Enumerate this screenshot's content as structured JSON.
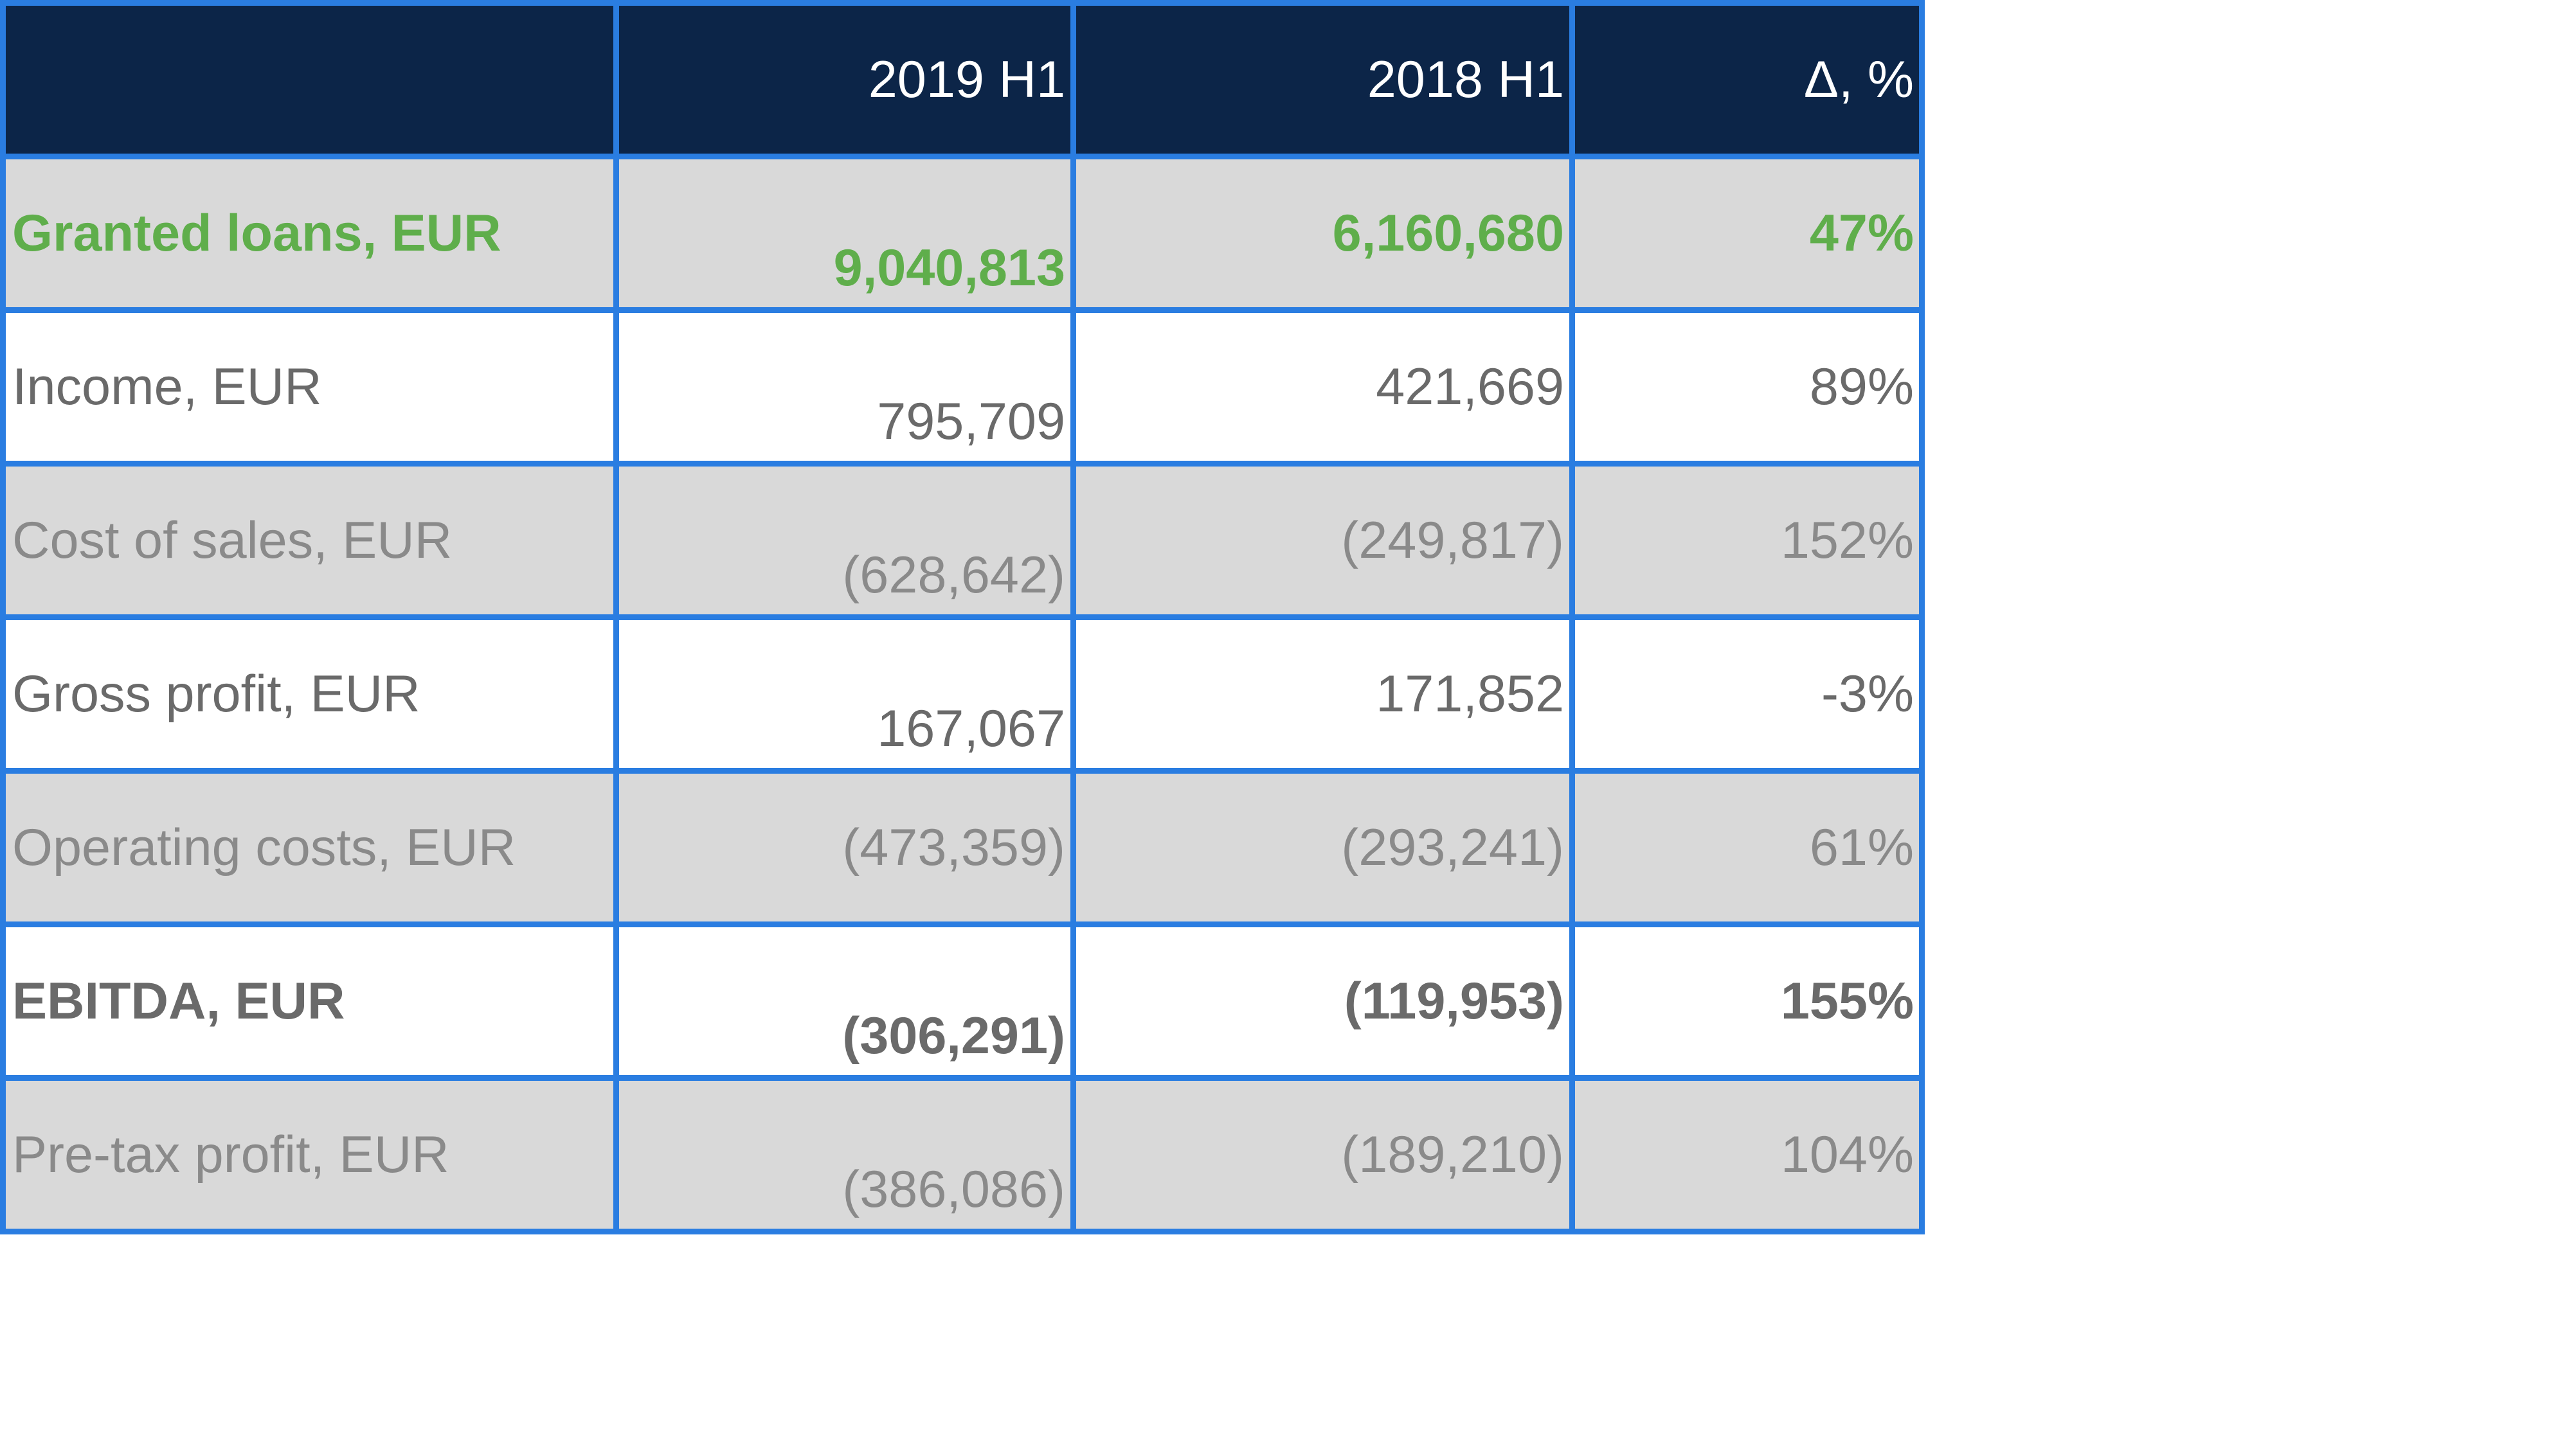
{
  "table": {
    "headers": [
      "",
      "2019 H1",
      "2018 H1",
      "Δ, %"
    ],
    "rows": [
      {
        "label": "Granted loans, EUR",
        "h1_2019": "9,040,813",
        "h1_2018": "6,160,680",
        "delta": "47%"
      },
      {
        "label": "Income, EUR",
        "h1_2019": "795,709",
        "h1_2018": "421,669",
        "delta": "89%"
      },
      {
        "label": "Cost of sales, EUR",
        "h1_2019": "(628,642)",
        "h1_2018": "(249,817)",
        "delta": "152%"
      },
      {
        "label": "Gross profit, EUR",
        "h1_2019": "167,067",
        "h1_2018": "171,852",
        "delta": "-3%"
      },
      {
        "label": "Operating costs, EUR",
        "h1_2019": "(473,359)",
        "h1_2018": "(293,241)",
        "delta": "61%"
      },
      {
        "label": "EBITDA, EUR",
        "h1_2019": "(306,291)",
        "h1_2018": "(119,953)",
        "delta": "155%"
      },
      {
        "label": "Pre-tax profit, EUR",
        "h1_2019": "(386,086)",
        "h1_2018": "(189,210)",
        "delta": "104%"
      }
    ]
  },
  "colors": {
    "header_bg": "#0c2548",
    "border": "#2a7de1",
    "shade_row": "#d9d9d9",
    "highlight_text": "#5fae4b",
    "body_text": "#717171"
  }
}
